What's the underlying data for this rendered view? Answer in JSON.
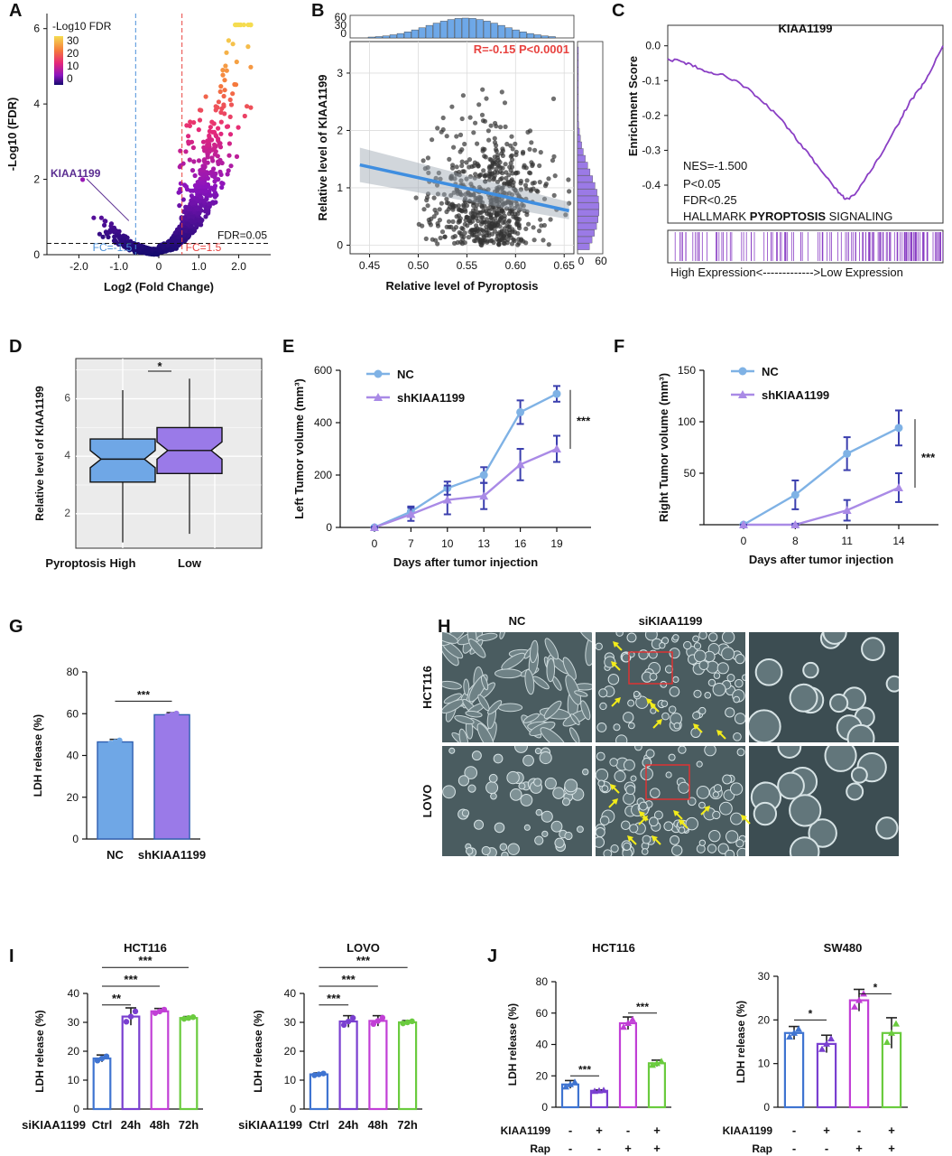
{
  "colors": {
    "nc_blue": "#7fb2e5",
    "sh_purple": "#a98ae6",
    "box_blue": "#6fa7e6",
    "box_purple": "#9a7ae8",
    "gsea_line": "#8a3fc4",
    "fit_line": "#3f8ee0",
    "red_text": "#e8423f",
    "kiaa_label": "#5a2d91",
    "arrow_yellow": "#f3ec1a",
    "ctrl_blue": "#3f74d1",
    "h24_purple": "#7a3fd0",
    "h48_magenta": "#c13fd6",
    "h72_green": "#6acb3e"
  },
  "chart_data": [
    {
      "panel": "A",
      "type": "scatter",
      "xlabel": "Log2 (Fold Change)",
      "ylabel": "-Log10 (FDR)",
      "xlim": [
        -2.8,
        2.8
      ],
      "ylim": [
        0,
        6.4
      ],
      "xticks": [
        "-2.0",
        "-1.0",
        "0",
        "1.0",
        "2.0"
      ],
      "yticks": [
        "0",
        "2",
        "4",
        "6"
      ],
      "legend_title": "-Log10 FDR",
      "legend_ticks": [
        "30",
        "20",
        "10",
        "0"
      ],
      "annotations": [
        "FDR=0.05",
        "FC=-1.5",
        "FC=1.5",
        "KIAA1199"
      ],
      "thresholds": {
        "fc_low": -0.58,
        "fc_high": 0.58,
        "fdr": 0.3
      },
      "highlight_point": {
        "label": "KIAA1199",
        "x": -0.75,
        "y": 0.9
      }
    },
    {
      "panel": "B",
      "type": "scatter",
      "xlabel": "Relative level of Pyroptosis",
      "ylabel": "Relative level of KIAA1199",
      "xlim": [
        0.43,
        0.66
      ],
      "ylim": [
        -0.15,
        3.55
      ],
      "xticks": [
        "0.45",
        "0.50",
        "0.55",
        "0.60",
        "0.65"
      ],
      "yticks": [
        "0",
        "1",
        "2",
        "3"
      ],
      "top_hist_ticks": [
        "60",
        "30",
        "0"
      ],
      "right_hist_ticks": [
        "0",
        "60"
      ],
      "annotation": "R=-0.15  P<0.0001",
      "fit": {
        "x": [
          0.44,
          0.655
        ],
        "y": [
          1.4,
          0.6
        ]
      }
    },
    {
      "panel": "C",
      "type": "line",
      "title": "KIAA1199",
      "ylabel": "Enrichment Score",
      "yticks": [
        "0.0",
        "-0.1",
        "-0.2",
        "-0.3",
        "-0.4"
      ],
      "ylim": [
        -0.47,
        0.02
      ],
      "stats": [
        "NES=-1.500",
        "P<0.05",
        "FDR<0.25"
      ],
      "label_prefix": "HALLMARK ",
      "label_bold": "PYROPTOSIS",
      "label_suffix": " SIGNALING",
      "xlabel": "High Expression<------------->Low Expression",
      "es_curve": [
        [
          0,
          -0.04
        ],
        [
          0.05,
          -0.045
        ],
        [
          0.1,
          -0.06
        ],
        [
          0.15,
          -0.075
        ],
        [
          0.2,
          -0.085
        ],
        [
          0.25,
          -0.1
        ],
        [
          0.3,
          -0.13
        ],
        [
          0.35,
          -0.165
        ],
        [
          0.4,
          -0.2
        ],
        [
          0.45,
          -0.25
        ],
        [
          0.5,
          -0.3
        ],
        [
          0.55,
          -0.35
        ],
        [
          0.6,
          -0.4
        ],
        [
          0.63,
          -0.43
        ],
        [
          0.65,
          -0.44
        ],
        [
          0.68,
          -0.43
        ],
        [
          0.72,
          -0.38
        ],
        [
          0.76,
          -0.33
        ],
        [
          0.8,
          -0.28
        ],
        [
          0.84,
          -0.22
        ],
        [
          0.88,
          -0.16
        ],
        [
          0.92,
          -0.12
        ],
        [
          0.95,
          -0.08
        ],
        [
          1.0,
          0.0
        ]
      ]
    },
    {
      "panel": "D",
      "type": "box",
      "ylabel": "Relative level of KIAA1199",
      "xlabel_left": "Pyroptosis",
      "categories": [
        "High",
        "Low"
      ],
      "ylim": [
        0.8,
        7.4
      ],
      "yticks": [
        "2",
        "4",
        "6"
      ],
      "boxes": [
        {
          "name": "High",
          "min": 1.0,
          "q1": 3.1,
          "median": 3.9,
          "q3": 4.6,
          "max": 6.3
        },
        {
          "name": "Low",
          "min": 1.3,
          "q1": 3.4,
          "median": 4.2,
          "q3": 5.0,
          "max": 6.7
        }
      ],
      "significance": "*"
    },
    {
      "panel": "E",
      "type": "line",
      "xlabel": "Days after tumor injection",
      "ylabel": "Left Tumor volume (mm³)",
      "x": [
        "0",
        "7",
        "10",
        "13",
        "16",
        "19"
      ],
      "ylim": [
        0,
        600
      ],
      "yticks": [
        "0",
        "200",
        "400",
        "600"
      ],
      "series": [
        {
          "name": "NC",
          "values": [
            0,
            60,
            150,
            200,
            440,
            510
          ],
          "err": [
            2,
            20,
            25,
            30,
            45,
            30
          ]
        },
        {
          "name": "shKIAA1199",
          "values": [
            0,
            50,
            105,
            120,
            240,
            300
          ],
          "err": [
            2,
            25,
            55,
            50,
            60,
            50
          ]
        }
      ],
      "significance": "***"
    },
    {
      "panel": "F",
      "type": "line",
      "xlabel": "Days after tumor injection",
      "ylabel": "Right Tumor volume (mm³)",
      "x": [
        "0",
        "8",
        "11",
        "14"
      ],
      "ylim": [
        0,
        150
      ],
      "yticks": [
        "50",
        "100",
        "150"
      ],
      "series": [
        {
          "name": "NC",
          "values": [
            0,
            29,
            69,
            94
          ],
          "err": [
            1,
            14,
            16,
            17
          ]
        },
        {
          "name": "shKIAA1199",
          "values": [
            0,
            0,
            14,
            36
          ],
          "err": [
            0,
            1,
            10,
            14
          ]
        }
      ],
      "significance": "***"
    },
    {
      "panel": "G",
      "type": "bar",
      "ylabel": "LDH release (%)",
      "categories": [
        "NC",
        "shKIAA1199"
      ],
      "values": [
        46.5,
        59.5
      ],
      "err": [
        1.2,
        1.0
      ],
      "ylim": [
        0,
        80
      ],
      "yticks": [
        "0",
        "20",
        "40",
        "60",
        "80"
      ],
      "significance": "***"
    },
    {
      "panel": "I",
      "type": "bar",
      "title": "HCT116",
      "ylabel": "LDH release (%)",
      "xprefix": "siKIAA1199",
      "categories": [
        "Ctrl",
        "24h",
        "48h",
        "72h"
      ],
      "values": [
        17.5,
        32.0,
        33.8,
        31.5
      ],
      "err": [
        1.2,
        3.0,
        1.0,
        0.5
      ],
      "ylim": [
        0,
        40
      ],
      "yticks": [
        "0",
        "10",
        "20",
        "30",
        "40"
      ],
      "brackets": [
        [
          "Ctrl",
          "24h",
          "**"
        ],
        [
          "Ctrl",
          "48h",
          "***"
        ],
        [
          "Ctrl",
          "72h",
          "***"
        ]
      ]
    },
    {
      "panel": "I",
      "type": "bar",
      "title": "LOVO",
      "ylabel": "LDH release (%)",
      "xprefix": "siKIAA1199",
      "categories": [
        "Ctrl",
        "24h",
        "48h",
        "72h"
      ],
      "values": [
        12.0,
        30.3,
        30.5,
        30.0
      ],
      "err": [
        0.5,
        2.0,
        1.8,
        0.6
      ],
      "ylim": [
        0,
        40
      ],
      "yticks": [
        "0",
        "10",
        "20",
        "30",
        "40"
      ],
      "brackets": [
        [
          "Ctrl",
          "24h",
          "***"
        ],
        [
          "Ctrl",
          "48h",
          "***"
        ],
        [
          "Ctrl",
          "72h",
          "***"
        ]
      ]
    },
    {
      "panel": "J",
      "type": "bar",
      "title": "HCT116",
      "ylabel": "LDH release (%)",
      "row_labels": [
        "KIAA1199",
        "Rap"
      ],
      "row_values": [
        [
          "-",
          "+",
          "-",
          "+"
        ],
        [
          "-",
          "-",
          "+",
          "+"
        ]
      ],
      "values": [
        14.5,
        10.5,
        53.5,
        28.0
      ],
      "err": [
        2.5,
        0.5,
        4.0,
        2.0
      ],
      "ylim": [
        0,
        80
      ],
      "yticks": [
        "0",
        "20",
        "40",
        "60",
        "80"
      ],
      "brackets": [
        [
          0,
          1,
          "***"
        ],
        [
          2,
          3,
          "***"
        ]
      ]
    },
    {
      "panel": "J",
      "type": "bar",
      "title": "SW480",
      "ylabel": "LDH release (%)",
      "row_labels": [
        "KIAA1199",
        "Rap"
      ],
      "row_values": [
        [
          "-",
          "+",
          "-",
          "+"
        ],
        [
          "-",
          "-",
          "+",
          "+"
        ]
      ],
      "values": [
        17.0,
        14.5,
        24.5,
        17.0
      ],
      "err": [
        1.5,
        2.0,
        2.5,
        3.5
      ],
      "ylim": [
        0,
        30
      ],
      "yticks": [
        "0",
        "10",
        "20",
        "30"
      ],
      "brackets": [
        [
          0,
          1,
          "*"
        ],
        [
          2,
          3,
          "*"
        ]
      ]
    }
  ],
  "micrograph": {
    "panel": "H",
    "columns": [
      "NC",
      "siKIAA1199"
    ],
    "rows": [
      "HCT116",
      "LOVO"
    ]
  },
  "panel_letters": [
    "A",
    "B",
    "C",
    "D",
    "E",
    "F",
    "G",
    "H",
    "I",
    "J"
  ]
}
